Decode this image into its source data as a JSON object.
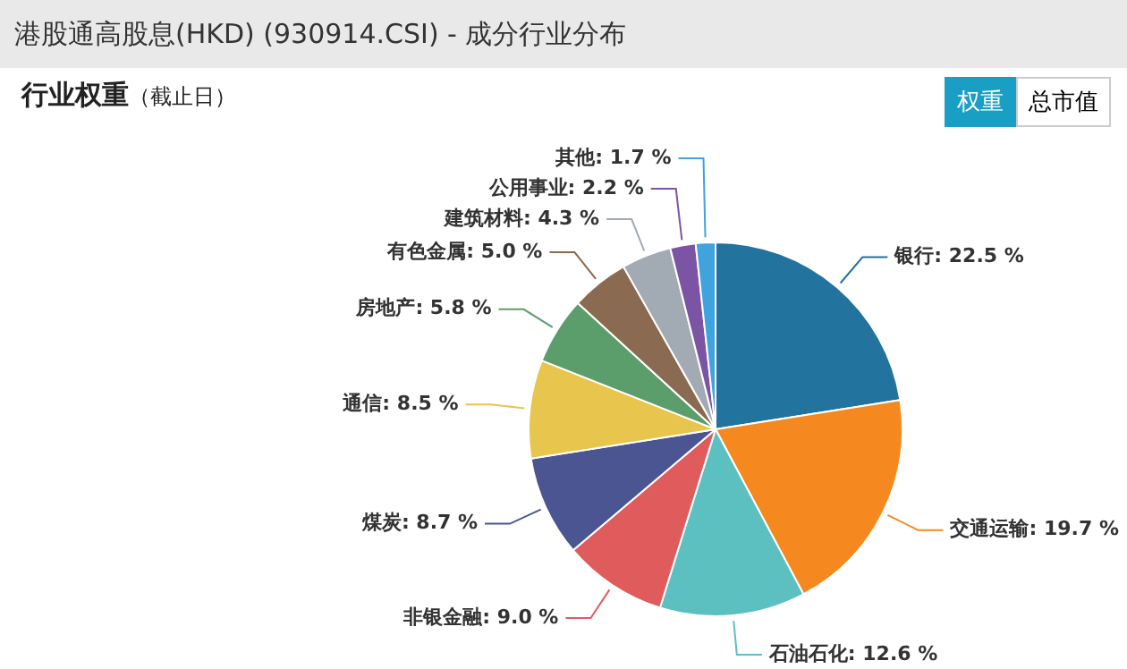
{
  "chart_data": {
    "type": "pie",
    "title": "港股通高股息(HKD) (930914.CSI) - 成分行业分布",
    "subtitle": "行业权重",
    "annotations": [
      "（截止日）",
      "权重",
      "总市值"
    ],
    "categories": [
      "银行",
      "交通运输",
      "石油石化",
      "非银金融",
      "煤炭",
      "通信",
      "房地产",
      "有色金属",
      "建筑材料",
      "公用事业",
      "其他"
    ],
    "values": [
      22.5,
      19.7,
      12.6,
      9.0,
      8.7,
      8.5,
      5.8,
      5.0,
      4.3,
      2.2,
      1.7
    ],
    "value_labels": [
      "22.5 %",
      "19.7 %",
      "12.6 %",
      "9.0 %",
      "8.7 %",
      "8.5 %",
      "5.8 %",
      "5.0 %",
      "4.3 %",
      "2.2 %",
      "1.7 %"
    ],
    "colors": [
      "#22739e",
      "#f5891f",
      "#5cc0c0",
      "#e05c5c",
      "#4a5592",
      "#e8c54c",
      "#5b9e6c",
      "#8b6a52",
      "#a2aab3",
      "#7b55a3",
      "#3fa3de"
    ],
    "legend": false
  }
}
